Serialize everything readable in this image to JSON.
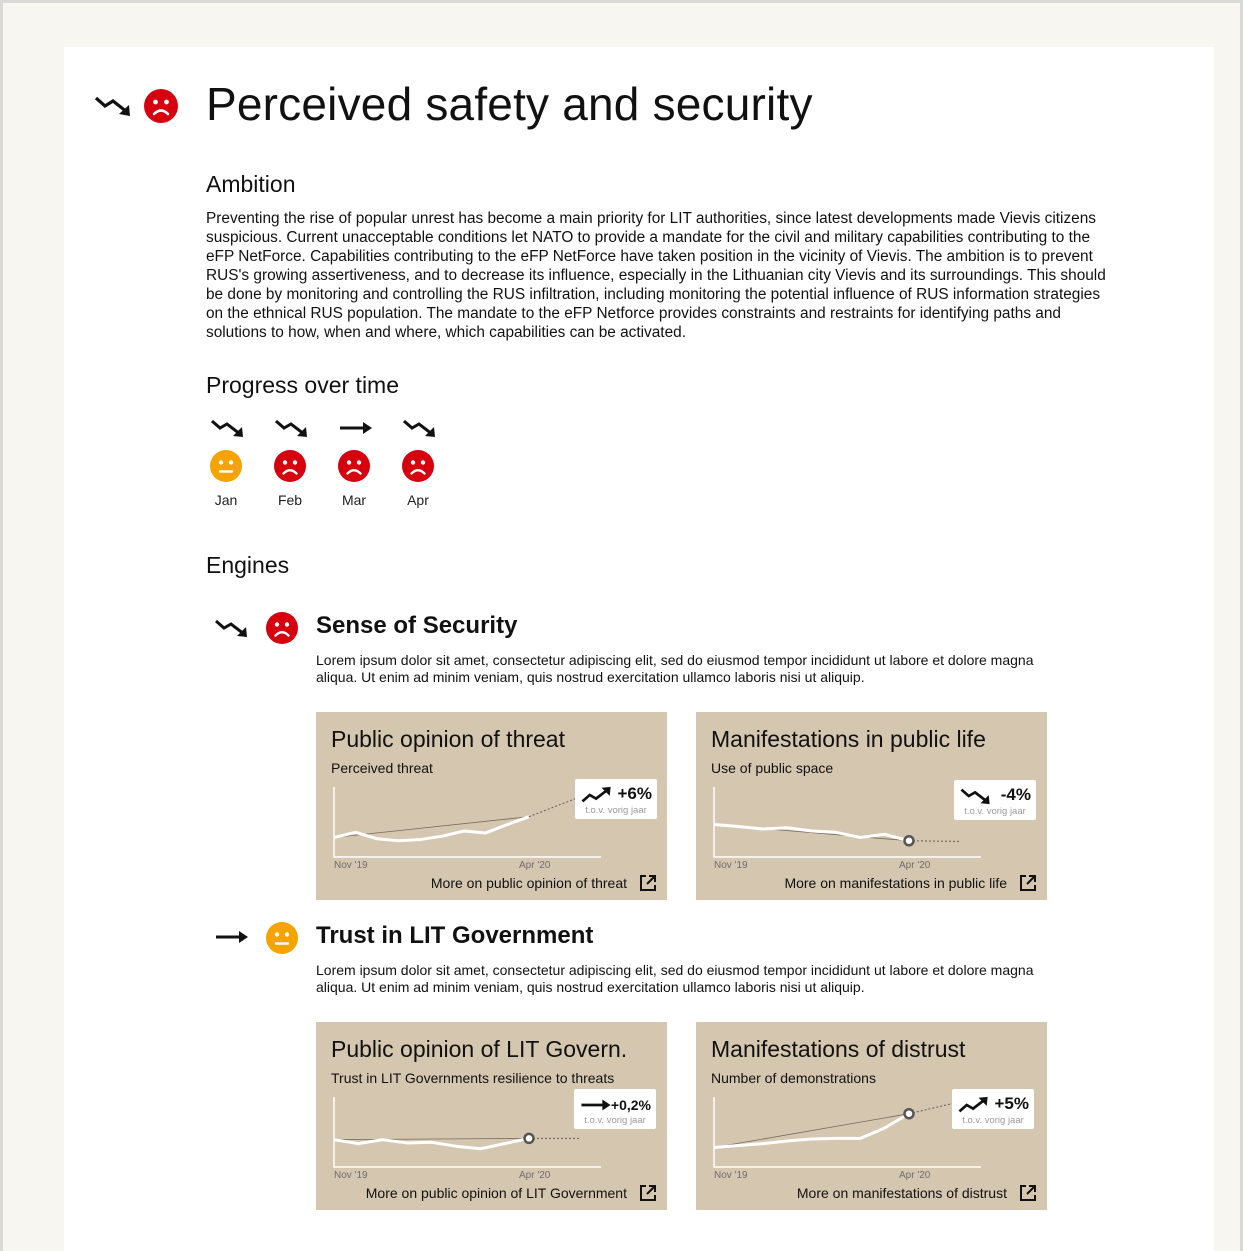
{
  "page": {
    "title": "Perceived safety and security",
    "title_trend_icon": "trend-down-icon",
    "title_status_icon": "sad-face-icon"
  },
  "ambition": {
    "heading": "Ambition",
    "text": "Preventing the rise of popular unrest has become a main priority for LIT authorities, since latest developments made Vievis citizens suspicious. Current unacceptable conditions let NATO to provide a mandate for the civil and military capabilities contributing to the eFP NetForce. Capabilities contributing to the eFP NetForce have taken position in the vicinity of Vievis. The ambition is to prevent RUS's growing assertiveness, and to decrease its influence, especially in the Lithuanian city Vievis and its surroundings. This should be done by monitoring and controlling the RUS infiltration, including monitoring the potential influence of RUS information strategies on the ethnical RUS population. The mandate to the eFP Netforce provides constraints and restraints for identifying paths and solutions to how, when and where, which capabilities can be activated."
  },
  "progress": {
    "heading": "Progress over time",
    "months": [
      {
        "label": "Jan",
        "trend": "down",
        "status": "neutral"
      },
      {
        "label": "Feb",
        "trend": "down",
        "status": "sad"
      },
      {
        "label": "Mar",
        "trend": "flat",
        "status": "sad"
      },
      {
        "label": "Apr",
        "trend": "down",
        "status": "sad"
      }
    ]
  },
  "engines": {
    "heading": "Engines",
    "items": [
      {
        "title": "Sense of Security",
        "trend": "down",
        "status": "sad",
        "description": "Lorem ipsum dolor sit amet, consectetur adipiscing elit, sed do eiusmod tempor incididunt ut labore et dolore magna aliqua. Ut enim ad minim veniam, quis nostrud exercitation ullamco laboris nisi ut aliquip.",
        "cards": [
          {
            "title": "Public opinion of threat",
            "subtitle": "Perceived threat",
            "change": "+6%",
            "change_caption": "t.o.v. vorig jaar",
            "change_icon": "trend-up-icon",
            "x_start": "Nov '19",
            "x_end": "Apr '20",
            "link": "More on public opinion of threat",
            "link_icon": "external-link-icon",
            "series": [
              0.3,
              0.38,
              0.28,
              0.25,
              0.27,
              0.32,
              0.4,
              0.37,
              0.5,
              0.62
            ],
            "forecast": [
              0.62,
              0.92
            ]
          },
          {
            "title": "Manifestations in public life",
            "subtitle": "Use of public space",
            "change": "-4%",
            "change_caption": "t.o.v. vorig jaar",
            "change_icon": "trend-down-icon",
            "x_start": "Nov '19",
            "x_end": "Apr '20",
            "link": "More on manifestations in public life",
            "link_icon": "external-link-icon",
            "series": [
              0.5,
              0.47,
              0.43,
              0.45,
              0.4,
              0.38,
              0.3,
              0.35,
              0.25
            ],
            "forecast": [
              0.25,
              0.24
            ]
          }
        ]
      },
      {
        "title": "Trust in LIT Government",
        "trend": "flat",
        "status": "neutral",
        "description": "Lorem ipsum dolor sit amet, consectetur adipiscing elit, sed do eiusmod tempor incididunt ut labore et dolore magna aliqua. Ut enim ad minim veniam, quis nostrud exercitation ullamco laboris nisi ut aliquip.",
        "cards": [
          {
            "title": "Public opinion of LIT Govern.",
            "subtitle": "Trust in LIT Governments resilience to threats",
            "change": "+0,2%",
            "change_caption": "t.o.v. vorig jaar",
            "change_icon": "trend-flat-icon",
            "x_start": "Nov '19",
            "x_end": "Apr '20",
            "link": "More on public opinion of LIT Government",
            "link_icon": "external-link-icon",
            "series": [
              0.42,
              0.36,
              0.42,
              0.37,
              0.38,
              0.32,
              0.28,
              0.36,
              0.44
            ],
            "forecast": [
              0.44,
              0.44
            ]
          },
          {
            "title": "Manifestations of distrust",
            "subtitle": "Number of demonstrations",
            "change": "+5%",
            "change_caption": "t.o.v. vorig jaar",
            "change_icon": "trend-up-icon",
            "x_start": "Nov '19",
            "x_end": "Apr '20",
            "link": "More on manifestations of distrust",
            "link_icon": "external-link-icon",
            "series": [
              0.3,
              0.33,
              0.36,
              0.4,
              0.43,
              0.44,
              0.44,
              0.6,
              0.82
            ],
            "forecast": [
              0.82,
              1.0
            ]
          }
        ]
      }
    ]
  },
  "colors": {
    "sad": "#d7000f",
    "neutral": "#f5a300",
    "card_bg": "#d5c6b0"
  }
}
